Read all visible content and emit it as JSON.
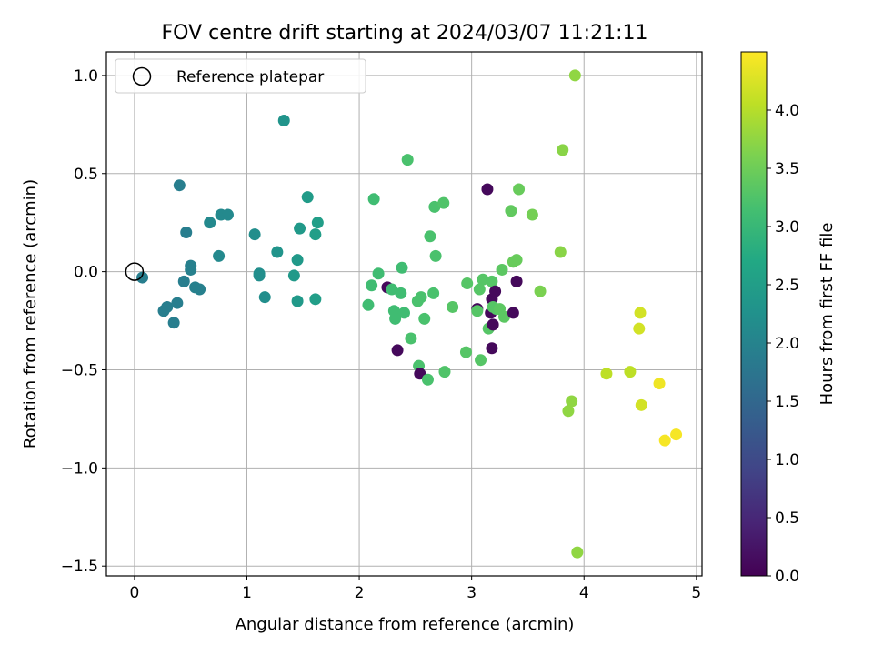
{
  "chart_data": {
    "type": "scatter",
    "title": "FOV centre drift starting at 2024/03/07 11:21:11",
    "xlabel": "Angular distance from reference (arcmin)",
    "ylabel": "Rotation from reference (arcmin)",
    "xlim": [
      -0.25,
      5.05
    ],
    "ylim": [
      -1.55,
      1.12
    ],
    "x_ticks": [
      0,
      1,
      2,
      3,
      4,
      5
    ],
    "y_ticks": [
      1.0,
      0.5,
      0.0,
      -0.5,
      -1.0,
      -1.5
    ],
    "x_tick_labels": [
      "0",
      "1",
      "2",
      "3",
      "4",
      "5"
    ],
    "y_tick_labels": [
      "1.0",
      "0.5",
      "0.0",
      "−0.5",
      "−1.0",
      "−1.5"
    ],
    "grid": true,
    "legend": {
      "placement": "upper-left",
      "entries": [
        "Reference platepar"
      ]
    },
    "reference_point": {
      "x": 0,
      "y": 0
    },
    "colorbar": {
      "label": "Hours from first FF file",
      "colormap": "viridis",
      "range": [
        0,
        4.5
      ],
      "ticks": [
        0.0,
        0.5,
        1.0,
        1.5,
        2.0,
        2.5,
        3.0,
        3.5,
        4.0
      ],
      "tick_labels": [
        "0.0",
        "0.5",
        "1.0",
        "1.5",
        "2.0",
        "2.5",
        "3.0",
        "3.5",
        "4.0"
      ]
    },
    "points": [
      {
        "x": 0.07,
        "y": -0.03,
        "t": 1.9
      },
      {
        "x": 0.26,
        "y": -0.2,
        "t": 1.9
      },
      {
        "x": 0.29,
        "y": -0.18,
        "t": 1.9
      },
      {
        "x": 0.35,
        "y": -0.26,
        "t": 1.9
      },
      {
        "x": 0.38,
        "y": -0.16,
        "t": 1.9
      },
      {
        "x": 0.4,
        "y": 0.44,
        "t": 1.9
      },
      {
        "x": 0.44,
        "y": -0.05,
        "t": 1.9
      },
      {
        "x": 0.46,
        "y": 0.2,
        "t": 1.9
      },
      {
        "x": 0.5,
        "y": 0.01,
        "t": 1.95
      },
      {
        "x": 0.5,
        "y": 0.03,
        "t": 1.95
      },
      {
        "x": 0.54,
        "y": -0.08,
        "t": 1.95
      },
      {
        "x": 0.58,
        "y": -0.09,
        "t": 1.95
      },
      {
        "x": 0.67,
        "y": 0.25,
        "t": 2.1
      },
      {
        "x": 0.75,
        "y": 0.08,
        "t": 2.1
      },
      {
        "x": 0.77,
        "y": 0.29,
        "t": 2.1
      },
      {
        "x": 0.83,
        "y": 0.29,
        "t": 2.1
      },
      {
        "x": 1.07,
        "y": 0.19,
        "t": 2.2
      },
      {
        "x": 1.11,
        "y": -0.01,
        "t": 2.2
      },
      {
        "x": 1.11,
        "y": -0.02,
        "t": 2.2
      },
      {
        "x": 1.16,
        "y": -0.13,
        "t": 2.2
      },
      {
        "x": 1.27,
        "y": 0.1,
        "t": 2.3
      },
      {
        "x": 1.33,
        "y": 0.77,
        "t": 2.3
      },
      {
        "x": 1.42,
        "y": -0.02,
        "t": 2.4
      },
      {
        "x": 1.45,
        "y": -0.15,
        "t": 2.4
      },
      {
        "x": 1.45,
        "y": 0.06,
        "t": 2.4
      },
      {
        "x": 1.47,
        "y": 0.22,
        "t": 2.4
      },
      {
        "x": 1.54,
        "y": 0.38,
        "t": 2.45
      },
      {
        "x": 1.61,
        "y": 0.19,
        "t": 2.5
      },
      {
        "x": 1.61,
        "y": -0.14,
        "t": 2.5
      },
      {
        "x": 1.63,
        "y": 0.25,
        "t": 2.5
      },
      {
        "x": 2.08,
        "y": -0.17,
        "t": 3.1
      },
      {
        "x": 2.11,
        "y": -0.07,
        "t": 3.1
      },
      {
        "x": 2.13,
        "y": 0.37,
        "t": 3.1
      },
      {
        "x": 2.17,
        "y": -0.01,
        "t": 3.1
      },
      {
        "x": 2.25,
        "y": -0.08,
        "t": 0.1
      },
      {
        "x": 2.29,
        "y": -0.09,
        "t": 3.1
      },
      {
        "x": 2.31,
        "y": -0.2,
        "t": 3.1
      },
      {
        "x": 2.32,
        "y": -0.24,
        "t": 3.1
      },
      {
        "x": 2.34,
        "y": -0.4,
        "t": 0.1
      },
      {
        "x": 2.37,
        "y": -0.11,
        "t": 3.1
      },
      {
        "x": 2.38,
        "y": 0.02,
        "t": 3.1
      },
      {
        "x": 2.4,
        "y": -0.21,
        "t": 3.1
      },
      {
        "x": 2.43,
        "y": 0.57,
        "t": 3.2
      },
      {
        "x": 2.46,
        "y": -0.34,
        "t": 3.2
      },
      {
        "x": 2.52,
        "y": -0.15,
        "t": 3.2
      },
      {
        "x": 2.53,
        "y": -0.48,
        "t": 3.2
      },
      {
        "x": 2.54,
        "y": -0.52,
        "t": 0.1
      },
      {
        "x": 2.55,
        "y": -0.13,
        "t": 3.2
      },
      {
        "x": 2.58,
        "y": -0.24,
        "t": 3.2
      },
      {
        "x": 2.61,
        "y": -0.55,
        "t": 3.2
      },
      {
        "x": 2.63,
        "y": 0.18,
        "t": 3.2
      },
      {
        "x": 2.66,
        "y": -0.11,
        "t": 3.2
      },
      {
        "x": 2.67,
        "y": 0.33,
        "t": 3.2
      },
      {
        "x": 2.68,
        "y": 0.08,
        "t": 3.2
      },
      {
        "x": 2.75,
        "y": 0.35,
        "t": 3.25
      },
      {
        "x": 2.76,
        "y": -0.51,
        "t": 3.25
      },
      {
        "x": 2.83,
        "y": -0.18,
        "t": 3.3
      },
      {
        "x": 2.95,
        "y": -0.41,
        "t": 3.3
      },
      {
        "x": 2.96,
        "y": -0.06,
        "t": 3.3
      },
      {
        "x": 3.05,
        "y": -0.19,
        "t": 0.1
      },
      {
        "x": 3.05,
        "y": -0.2,
        "t": 3.3
      },
      {
        "x": 3.07,
        "y": -0.09,
        "t": 3.3
      },
      {
        "x": 3.08,
        "y": -0.45,
        "t": 3.3
      },
      {
        "x": 3.1,
        "y": -0.04,
        "t": 3.3
      },
      {
        "x": 3.14,
        "y": 0.42,
        "t": 0.1
      },
      {
        "x": 3.15,
        "y": -0.29,
        "t": 3.3
      },
      {
        "x": 3.17,
        "y": -0.21,
        "t": 0.1
      },
      {
        "x": 3.18,
        "y": -0.14,
        "t": 0.1
      },
      {
        "x": 3.18,
        "y": -0.39,
        "t": 0.1
      },
      {
        "x": 3.18,
        "y": -0.05,
        "t": 3.3
      },
      {
        "x": 3.19,
        "y": -0.18,
        "t": 3.3
      },
      {
        "x": 3.19,
        "y": -0.27,
        "t": 0.1
      },
      {
        "x": 3.21,
        "y": -0.1,
        "t": 0.1
      },
      {
        "x": 3.22,
        "y": -0.19,
        "t": 3.3
      },
      {
        "x": 3.25,
        "y": -0.19,
        "t": 3.35
      },
      {
        "x": 3.27,
        "y": 0.01,
        "t": 3.35
      },
      {
        "x": 3.29,
        "y": -0.23,
        "t": 3.35
      },
      {
        "x": 3.35,
        "y": 0.31,
        "t": 3.4
      },
      {
        "x": 3.37,
        "y": -0.21,
        "t": 0.1
      },
      {
        "x": 3.37,
        "y": 0.05,
        "t": 3.45
      },
      {
        "x": 3.4,
        "y": 0.06,
        "t": 3.45
      },
      {
        "x": 3.4,
        "y": -0.05,
        "t": 0.1
      },
      {
        "x": 3.42,
        "y": 0.42,
        "t": 3.45
      },
      {
        "x": 3.54,
        "y": 0.29,
        "t": 3.55
      },
      {
        "x": 3.61,
        "y": -0.1,
        "t": 3.6
      },
      {
        "x": 3.79,
        "y": 0.1,
        "t": 3.7
      },
      {
        "x": 3.81,
        "y": 0.62,
        "t": 3.7
      },
      {
        "x": 3.86,
        "y": -0.71,
        "t": 3.75
      },
      {
        "x": 3.89,
        "y": -0.66,
        "t": 3.75
      },
      {
        "x": 3.92,
        "y": 1.0,
        "t": 3.75
      },
      {
        "x": 3.94,
        "y": -1.43,
        "t": 3.75
      },
      {
        "x": 4.2,
        "y": -0.52,
        "t": 4.05
      },
      {
        "x": 4.41,
        "y": -0.51,
        "t": 4.05
      },
      {
        "x": 4.49,
        "y": -0.29,
        "t": 4.2
      },
      {
        "x": 4.5,
        "y": -0.21,
        "t": 4.2
      },
      {
        "x": 4.51,
        "y": -0.68,
        "t": 4.2
      },
      {
        "x": 4.67,
        "y": -0.57,
        "t": 4.4
      },
      {
        "x": 4.72,
        "y": -0.86,
        "t": 4.45
      },
      {
        "x": 4.82,
        "y": -0.83,
        "t": 4.45
      }
    ]
  }
}
